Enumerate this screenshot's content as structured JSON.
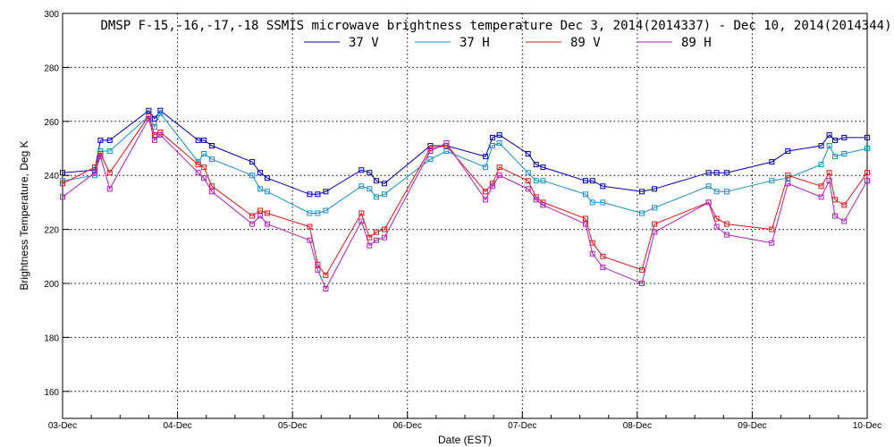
{
  "chart_data": {
    "type": "line",
    "title": "DMSP F-15,-16,-17,-18 SSMIS microwave brightness temperature Dec  3, 2014(2014337) - Dec 10, 2014(2014344)",
    "xlabel": "Date (EST)",
    "ylabel": "Brightness Temperature, Deg K",
    "x_ticks": [
      "03-Dec",
      "04-Dec",
      "05-Dec",
      "06-Dec",
      "07-Dec",
      "08-Dec",
      "09-Dec",
      "10-Dec"
    ],
    "xlim": [
      0,
      7
    ],
    "ylim": [
      150,
      300
    ],
    "y_ticks": [
      160,
      180,
      200,
      220,
      240,
      260,
      280,
      300
    ],
    "grid": true,
    "legend_position": "top-center",
    "series": [
      {
        "name": "37 V",
        "color": "#0000b0",
        "points": [
          [
            0,
            241
          ],
          [
            0.28,
            242
          ],
          [
            0.33,
            253
          ],
          [
            0.41,
            253
          ],
          [
            0.75,
            264
          ],
          [
            0.8,
            261
          ],
          [
            0.85,
            264
          ],
          [
            1.18,
            253
          ],
          [
            1.23,
            253
          ],
          [
            1.3,
            251
          ],
          [
            1.65,
            245
          ],
          [
            1.72,
            241
          ],
          [
            1.78,
            239
          ],
          [
            2.15,
            233
          ],
          [
            2.22,
            233
          ],
          [
            2.29,
            234
          ],
          [
            2.6,
            242
          ],
          [
            2.67,
            241
          ],
          [
            2.73,
            238
          ],
          [
            2.8,
            237
          ],
          [
            3.2,
            251
          ],
          [
            3.34,
            251
          ],
          [
            3.68,
            247
          ],
          [
            3.74,
            254
          ],
          [
            3.8,
            255
          ],
          [
            4.05,
            248
          ],
          [
            4.12,
            244
          ],
          [
            4.18,
            243
          ],
          [
            4.55,
            238
          ],
          [
            4.61,
            238
          ],
          [
            4.7,
            236
          ],
          [
            5.04,
            234
          ],
          [
            5.15,
            235
          ],
          [
            5.62,
            241
          ],
          [
            5.69,
            241
          ],
          [
            5.78,
            241
          ],
          [
            6.17,
            245
          ],
          [
            6.31,
            249
          ],
          [
            6.6,
            251
          ],
          [
            6.67,
            255
          ],
          [
            6.72,
            253
          ],
          [
            6.8,
            254
          ],
          [
            7,
            254
          ]
        ]
      },
      {
        "name": "37 H",
        "color": "#1a90d0",
        "points": [
          [
            0,
            238
          ],
          [
            0.28,
            240
          ],
          [
            0.33,
            249
          ],
          [
            0.41,
            249
          ],
          [
            0.75,
            262
          ],
          [
            0.8,
            258
          ],
          [
            0.85,
            263
          ],
          [
            1.18,
            245
          ],
          [
            1.23,
            248
          ],
          [
            1.3,
            246
          ],
          [
            1.65,
            240
          ],
          [
            1.72,
            235
          ],
          [
            1.78,
            234
          ],
          [
            2.15,
            226
          ],
          [
            2.22,
            226
          ],
          [
            2.29,
            227
          ],
          [
            2.6,
            236
          ],
          [
            2.67,
            235
          ],
          [
            2.73,
            232
          ],
          [
            2.8,
            233
          ],
          [
            3.2,
            246
          ],
          [
            3.34,
            249
          ],
          [
            3.68,
            243
          ],
          [
            3.74,
            251
          ],
          [
            3.8,
            252
          ],
          [
            4.05,
            241
          ],
          [
            4.12,
            238
          ],
          [
            4.18,
            238
          ],
          [
            4.55,
            233
          ],
          [
            4.61,
            230
          ],
          [
            4.7,
            230
          ],
          [
            5.04,
            226
          ],
          [
            5.15,
            228
          ],
          [
            5.62,
            236
          ],
          [
            5.69,
            234
          ],
          [
            5.78,
            234
          ],
          [
            6.17,
            238
          ],
          [
            6.31,
            239
          ],
          [
            6.6,
            244
          ],
          [
            6.67,
            251
          ],
          [
            6.72,
            247
          ],
          [
            6.8,
            248
          ],
          [
            7,
            250
          ]
        ]
      },
      {
        "name": "89 V",
        "color": "#e01818",
        "points": [
          [
            0,
            237
          ],
          [
            0.28,
            243
          ],
          [
            0.33,
            248
          ],
          [
            0.41,
            241
          ],
          [
            0.75,
            262
          ],
          [
            0.8,
            255
          ],
          [
            0.85,
            256
          ],
          [
            1.18,
            244
          ],
          [
            1.23,
            243
          ],
          [
            1.3,
            236
          ],
          [
            1.65,
            225
          ],
          [
            1.72,
            227
          ],
          [
            1.78,
            226
          ],
          [
            2.15,
            221
          ],
          [
            2.22,
            207
          ],
          [
            2.29,
            203
          ],
          [
            2.6,
            226
          ],
          [
            2.67,
            217
          ],
          [
            2.73,
            219
          ],
          [
            2.8,
            220
          ],
          [
            3.2,
            250
          ],
          [
            3.34,
            251
          ],
          [
            3.68,
            234
          ],
          [
            3.74,
            237
          ],
          [
            3.8,
            243
          ],
          [
            4.05,
            238
          ],
          [
            4.12,
            232
          ],
          [
            4.18,
            230
          ],
          [
            4.55,
            224
          ],
          [
            4.61,
            215
          ],
          [
            4.7,
            210
          ],
          [
            5.04,
            205
          ],
          [
            5.15,
            222
          ],
          [
            5.62,
            230
          ],
          [
            5.69,
            224
          ],
          [
            5.78,
            222
          ],
          [
            6.17,
            220
          ],
          [
            6.31,
            240
          ],
          [
            6.6,
            236
          ],
          [
            6.67,
            241
          ],
          [
            6.72,
            231
          ],
          [
            6.8,
            229
          ],
          [
            7,
            241
          ]
        ]
      },
      {
        "name": "89 H",
        "color": "#b020c0",
        "points": [
          [
            0,
            232
          ],
          [
            0.28,
            241
          ],
          [
            0.33,
            247
          ],
          [
            0.41,
            235
          ],
          [
            0.75,
            261
          ],
          [
            0.8,
            253
          ],
          [
            0.85,
            255
          ],
          [
            1.18,
            241
          ],
          [
            1.23,
            239
          ],
          [
            1.3,
            234
          ],
          [
            1.65,
            222
          ],
          [
            1.72,
            225
          ],
          [
            1.78,
            222
          ],
          [
            2.15,
            216
          ],
          [
            2.22,
            205
          ],
          [
            2.29,
            198
          ],
          [
            2.6,
            223
          ],
          [
            2.67,
            214
          ],
          [
            2.73,
            216
          ],
          [
            2.8,
            217
          ],
          [
            3.2,
            249
          ],
          [
            3.34,
            252
          ],
          [
            3.68,
            231
          ],
          [
            3.74,
            236
          ],
          [
            3.8,
            240
          ],
          [
            4.05,
            235
          ],
          [
            4.12,
            231
          ],
          [
            4.18,
            229
          ],
          [
            4.55,
            222
          ],
          [
            4.61,
            211
          ],
          [
            4.7,
            206
          ],
          [
            5.04,
            200
          ],
          [
            5.15,
            219
          ],
          [
            5.62,
            230
          ],
          [
            5.69,
            221
          ],
          [
            5.78,
            218
          ],
          [
            6.17,
            215
          ],
          [
            6.31,
            237
          ],
          [
            6.6,
            232
          ],
          [
            6.67,
            238
          ],
          [
            6.72,
            225
          ],
          [
            6.8,
            223
          ],
          [
            7,
            238
          ]
        ]
      }
    ]
  }
}
